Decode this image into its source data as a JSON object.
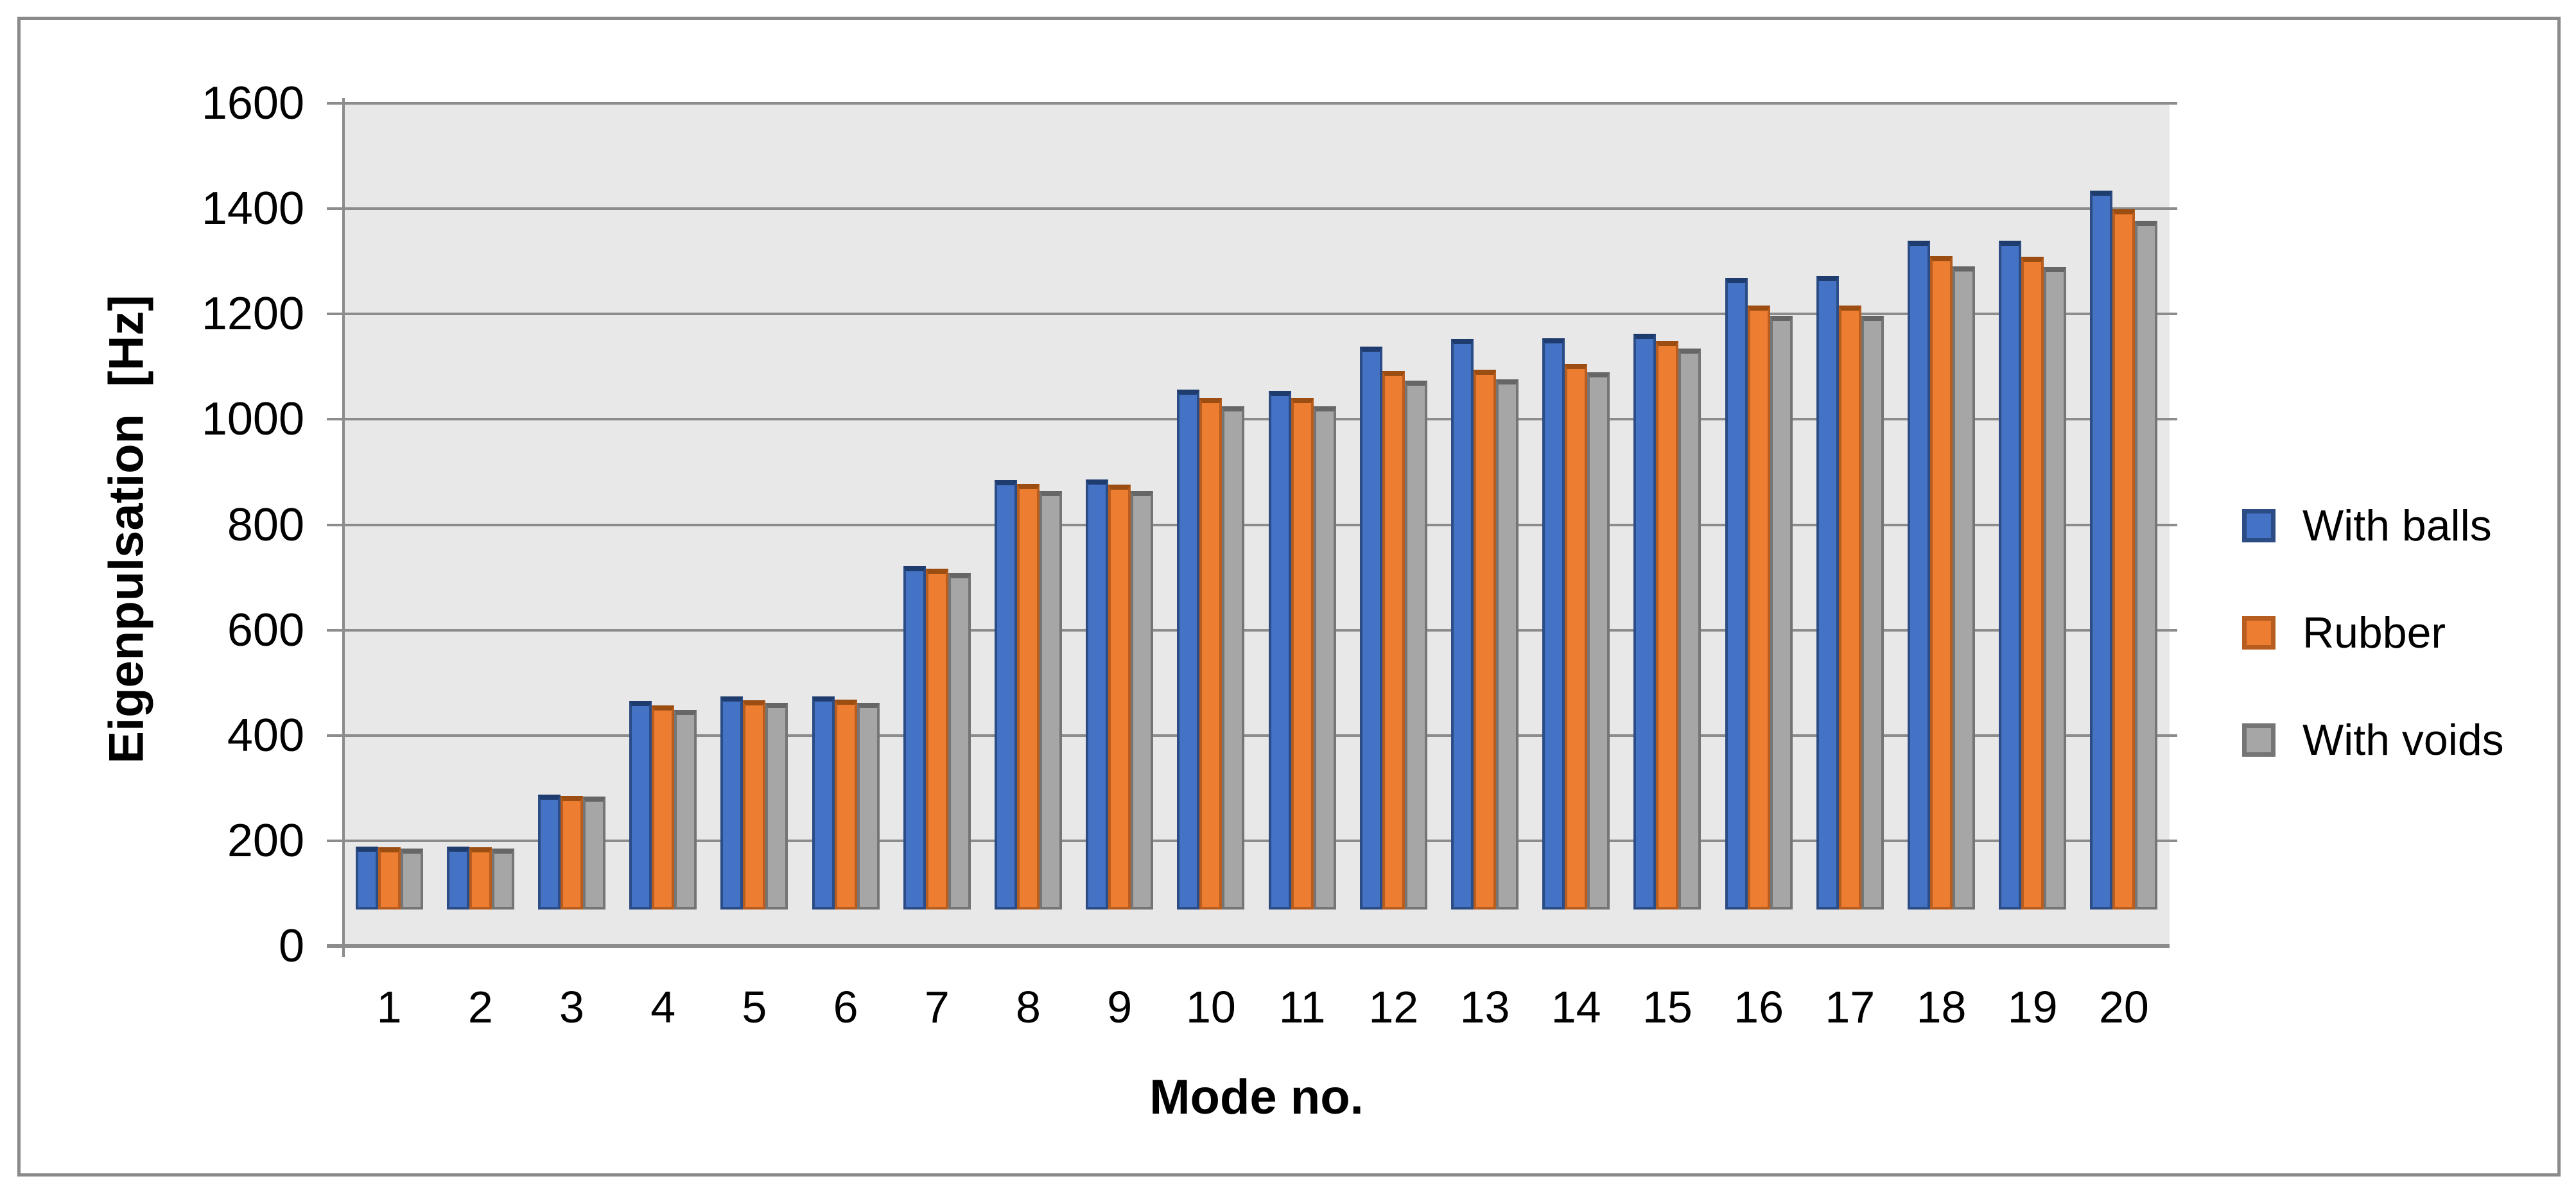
{
  "chart_data": {
    "type": "bar",
    "title": "",
    "xlabel": "Mode no.",
    "ylabel": "Eigenpulsation  [Hz]",
    "categories": [
      "1",
      "2",
      "3",
      "4",
      "5",
      "6",
      "7",
      "8",
      "9",
      "10",
      "11",
      "12",
      "13",
      "14",
      "15",
      "16",
      "17",
      "18",
      "19",
      "20"
    ],
    "series": [
      {
        "name": "With balls",
        "color": "#4472c4",
        "border_color": "#2b4c85",
        "cap_color": "#1f3c6e",
        "values": [
          120,
          120,
          218,
          396,
          404,
          404,
          652,
          815,
          817,
          987,
          985,
          1069,
          1083,
          1084,
          1093,
          1199,
          1203,
          1270,
          1270,
          1365
        ]
      },
      {
        "name": "Rubber",
        "color": "#ed7d31",
        "border_color": "#b65d1f",
        "cap_color": "#9c4e12",
        "values": [
          118,
          118,
          216,
          387,
          397,
          398,
          647,
          808,
          807,
          971,
          971,
          1023,
          1025,
          1036,
          1080,
          1147,
          1147,
          1240,
          1239,
          1329
        ]
      },
      {
        "name": "With voids",
        "color": "#a6a6a6",
        "border_color": "#757575",
        "cap_color": "#666666",
        "values": [
          116,
          116,
          214,
          379,
          392,
          392,
          639,
          795,
          794,
          955,
          955,
          1004,
          1007,
          1020,
          1065,
          1127,
          1127,
          1221,
          1220,
          1307
        ]
      }
    ],
    "ylim": [
      0,
      1600
    ],
    "ytick_step": 200,
    "yticks": [
      "0",
      "200",
      "400",
      "600",
      "800",
      "1000",
      "1200",
      "1400",
      "1600"
    ],
    "grid": "horizontal-major",
    "legend_position": "right"
  },
  "colors": {
    "page_bg": "#ffffff",
    "frame_border": "#8a8a8a",
    "plot_bg": "#e8e8e8",
    "gridline": "#8c8c8c",
    "axis": "#8c8c8c",
    "text": "#000000"
  }
}
